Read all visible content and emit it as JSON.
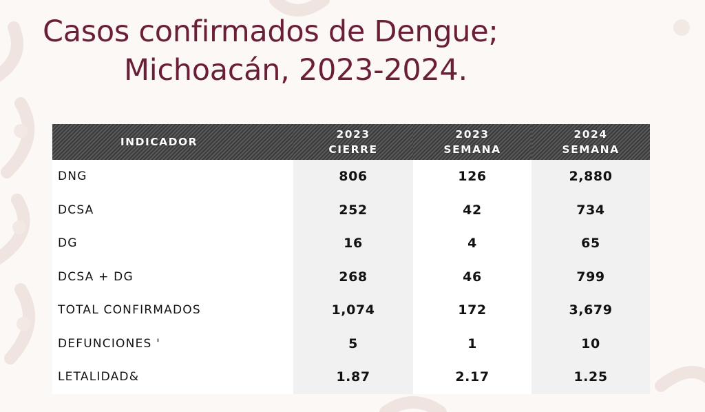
{
  "title": {
    "line1": "Casos confirmados de Dengue;",
    "line2": "Michoacán, 2023-2024."
  },
  "table": {
    "headers": [
      {
        "top": "INDICADOR",
        "bottom": ""
      },
      {
        "top": "2023",
        "bottom": "CIERRE"
      },
      {
        "top": "2023",
        "bottom": "SEMANA"
      },
      {
        "top": "2024",
        "bottom": "SEMANA"
      }
    ],
    "rows": [
      {
        "indicator": "DNG",
        "values": [
          "806",
          "126",
          "2,880"
        ]
      },
      {
        "indicator": "DCSA",
        "values": [
          "252",
          "42",
          "734"
        ]
      },
      {
        "indicator": "DG",
        "values": [
          "16",
          "4",
          "65"
        ]
      },
      {
        "indicator": "DCSA + DG",
        "values": [
          "268",
          "46",
          "799"
        ]
      },
      {
        "indicator": "TOTAL CONFIRMADOS",
        "values": [
          "1,074",
          "172",
          "3,679"
        ]
      },
      {
        "indicator": "DEFUNCIONES '",
        "values": [
          "5",
          "1",
          "10"
        ]
      },
      {
        "indicator": "LETALIDAD&",
        "values": [
          "1.87",
          "2.17",
          "1.25"
        ]
      }
    ]
  },
  "colors": {
    "title": "#6b1f37",
    "header_bg": "#4a4a4a",
    "shaded_col": "#f1f1f1"
  }
}
